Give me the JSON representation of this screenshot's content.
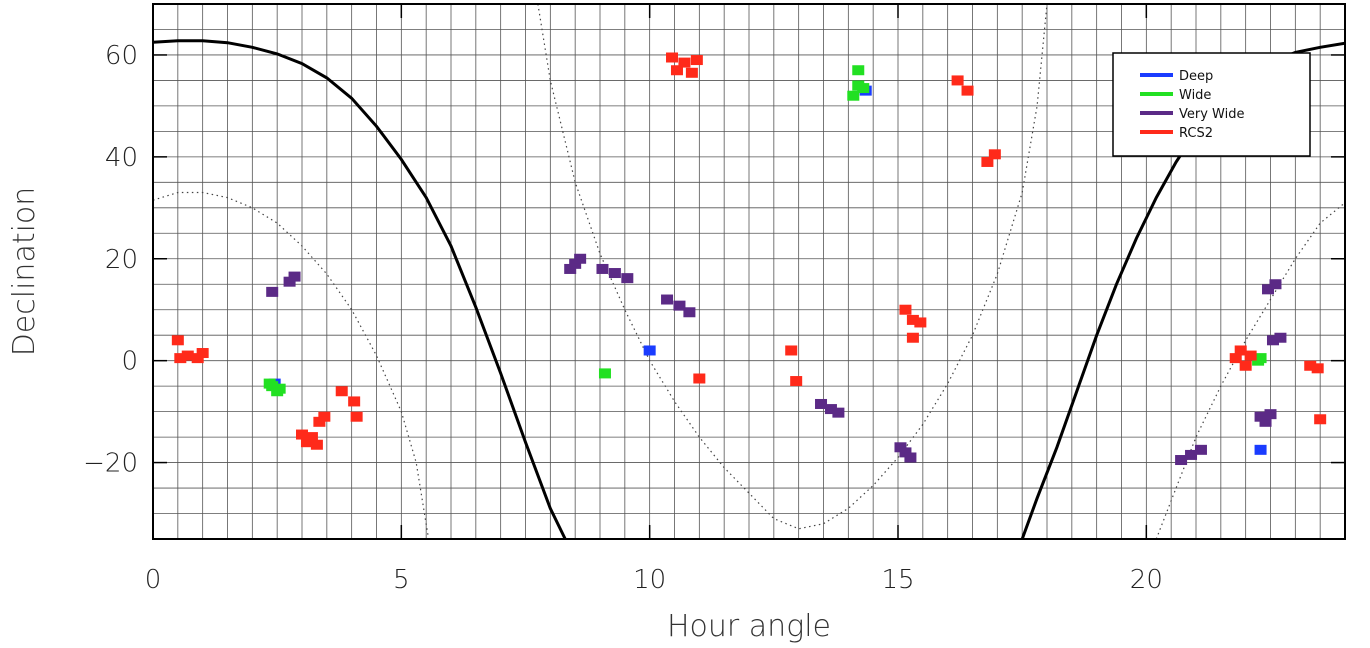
{
  "chart_data": {
    "type": "scatter",
    "title": "",
    "xlabel": "Hour angle",
    "ylabel": "Declination",
    "xlim": [
      0,
      24
    ],
    "ylim": [
      -35,
      70
    ],
    "xticks": [
      0,
      5,
      10,
      15,
      20
    ],
    "yticks": [
      -20,
      0,
      20,
      40,
      60
    ],
    "grid": true,
    "grid_spacing": {
      "x": 0.5,
      "y": 5
    },
    "legend_placement": "top-right",
    "colors": {
      "Deep": "#1a3cff",
      "Wide": "#22e022",
      "Very Wide": "#5b2a86",
      "RCS2": "#ff2a1a"
    },
    "series": [
      {
        "name": "Deep",
        "points": [
          [
            2.45,
            -4.5
          ],
          [
            14.35,
            53
          ],
          [
            10.0,
            2
          ],
          [
            22.3,
            -17.5
          ]
        ]
      },
      {
        "name": "Wide",
        "points": [
          [
            2.4,
            -5
          ],
          [
            2.5,
            -6
          ],
          [
            2.35,
            -4.5
          ],
          [
            2.55,
            -5.5
          ],
          [
            14.1,
            52
          ],
          [
            14.2,
            54
          ],
          [
            14.3,
            53.5
          ],
          [
            14.2,
            57
          ],
          [
            9.1,
            -2.5
          ],
          [
            22.3,
            0.5
          ],
          [
            22.25,
            0
          ]
        ]
      },
      {
        "name": "Very Wide",
        "points": [
          [
            2.4,
            13.5
          ],
          [
            2.75,
            15.5
          ],
          [
            2.85,
            16.5
          ],
          [
            8.4,
            18
          ],
          [
            8.5,
            19
          ],
          [
            8.6,
            20
          ],
          [
            9.05,
            18
          ],
          [
            9.3,
            17.2
          ],
          [
            9.55,
            16.2
          ],
          [
            10.35,
            12
          ],
          [
            10.6,
            10.8
          ],
          [
            10.8,
            9.5
          ],
          [
            13.45,
            -8.5
          ],
          [
            13.65,
            -9.5
          ],
          [
            13.8,
            -10.2
          ],
          [
            15.05,
            -17
          ],
          [
            15.15,
            -18
          ],
          [
            15.25,
            -19
          ],
          [
            20.7,
            -19.5
          ],
          [
            20.9,
            -18.5
          ],
          [
            21.1,
            -17.5
          ],
          [
            22.3,
            -11
          ],
          [
            22.4,
            -12
          ],
          [
            22.5,
            -10.5
          ],
          [
            22.45,
            14
          ],
          [
            22.6,
            15
          ],
          [
            22.55,
            4
          ],
          [
            22.7,
            4.5
          ]
        ]
      },
      {
        "name": "RCS2",
        "points": [
          [
            0.5,
            4
          ],
          [
            0.55,
            0.5
          ],
          [
            0.7,
            1
          ],
          [
            0.9,
            0.5
          ],
          [
            1.0,
            1.5
          ],
          [
            3.0,
            -14.5
          ],
          [
            3.1,
            -16
          ],
          [
            3.2,
            -15
          ],
          [
            3.3,
            -16.5
          ],
          [
            3.35,
            -12
          ],
          [
            3.45,
            -11
          ],
          [
            3.8,
            -6
          ],
          [
            4.05,
            -8
          ],
          [
            4.1,
            -11
          ],
          [
            10.45,
            59.5
          ],
          [
            10.55,
            57
          ],
          [
            10.7,
            58.5
          ],
          [
            10.85,
            56.5
          ],
          [
            10.95,
            59
          ],
          [
            11.0,
            -3.5
          ],
          [
            12.85,
            2
          ],
          [
            12.95,
            -4
          ],
          [
            15.15,
            10
          ],
          [
            15.3,
            8
          ],
          [
            15.45,
            7.5
          ],
          [
            15.3,
            4.5
          ],
          [
            16.2,
            55
          ],
          [
            16.4,
            53
          ],
          [
            16.8,
            39
          ],
          [
            16.95,
            40.5
          ],
          [
            21.8,
            0.5
          ],
          [
            21.9,
            2
          ],
          [
            22.0,
            -1
          ],
          [
            22.1,
            1
          ],
          [
            23.3,
            -1
          ],
          [
            23.45,
            -1.5
          ],
          [
            23.5,
            -11.5
          ]
        ]
      }
    ],
    "curves": [
      {
        "style": "solid",
        "points": [
          [
            0,
            62.5
          ],
          [
            0.5,
            62.8
          ],
          [
            1,
            62.8
          ],
          [
            1.5,
            62.4
          ],
          [
            2,
            61.5
          ],
          [
            2.5,
            60.2
          ],
          [
            3,
            58.3
          ],
          [
            3.5,
            55.5
          ],
          [
            4,
            51.5
          ],
          [
            4.5,
            46
          ],
          [
            5,
            39.5
          ],
          [
            5.5,
            32
          ],
          [
            6,
            22.5
          ],
          [
            6.5,
            10.5
          ],
          [
            7,
            -2.5
          ],
          [
            7.5,
            -16
          ],
          [
            8,
            -29
          ],
          [
            8.3,
            -35
          ]
        ]
      },
      {
        "style": "solid",
        "points": [
          [
            17.5,
            -35
          ],
          [
            17.8,
            -27
          ],
          [
            18.2,
            -17
          ],
          [
            18.6,
            -6
          ],
          [
            19,
            5
          ],
          [
            19.4,
            15
          ],
          [
            19.8,
            24
          ],
          [
            20.2,
            32
          ],
          [
            20.6,
            39
          ],
          [
            21,
            45
          ],
          [
            21.5,
            51
          ],
          [
            22,
            55.5
          ],
          [
            22.5,
            58.5
          ],
          [
            23,
            60.5
          ],
          [
            23.5,
            61.5
          ],
          [
            24,
            62.3
          ]
        ]
      },
      {
        "style": "dotted",
        "points": [
          [
            0,
            31.5
          ],
          [
            0.5,
            33
          ],
          [
            1,
            33
          ],
          [
            1.5,
            32
          ],
          [
            2,
            30
          ],
          [
            2.5,
            27
          ],
          [
            3,
            22.5
          ],
          [
            3.5,
            17
          ],
          [
            4,
            10
          ],
          [
            4.5,
            1
          ],
          [
            5,
            -10
          ],
          [
            5.3,
            -20
          ],
          [
            5.55,
            -35
          ]
        ]
      },
      {
        "style": "dotted",
        "points": [
          [
            7.75,
            70
          ],
          [
            8,
            55
          ],
          [
            8.5,
            35
          ],
          [
            9,
            21
          ],
          [
            9.5,
            10
          ],
          [
            10,
            0
          ],
          [
            10.5,
            -8
          ],
          [
            11,
            -15
          ],
          [
            11.5,
            -21
          ],
          [
            12,
            -26
          ],
          [
            12.5,
            -31
          ],
          [
            13,
            -33
          ],
          [
            13.5,
            -32
          ],
          [
            14,
            -29
          ],
          [
            14.5,
            -24.5
          ],
          [
            15,
            -19
          ],
          [
            15.5,
            -12.5
          ],
          [
            16,
            -4.5
          ],
          [
            16.5,
            5
          ],
          [
            17,
            17
          ],
          [
            17.5,
            33
          ],
          [
            17.8,
            50
          ],
          [
            18,
            70
          ]
        ]
      },
      {
        "style": "dotted",
        "points": [
          [
            20.2,
            -35
          ],
          [
            20.6,
            -25
          ],
          [
            21,
            -15
          ],
          [
            21.5,
            -5
          ],
          [
            22,
            4
          ],
          [
            22.5,
            12
          ],
          [
            23,
            20
          ],
          [
            23.5,
            27
          ],
          [
            24,
            31
          ]
        ]
      }
    ]
  }
}
